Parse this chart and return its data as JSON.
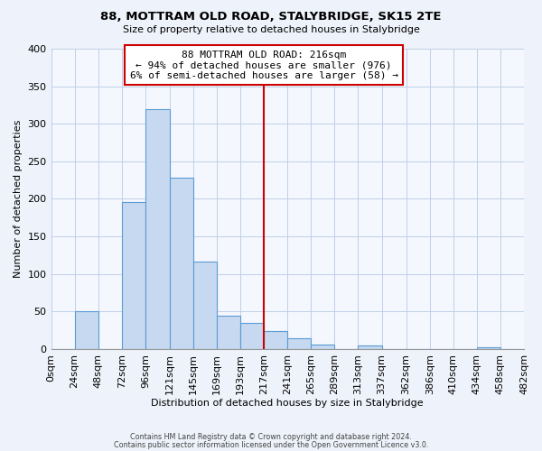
{
  "title": "88, MOTTRAM OLD ROAD, STALYBRIDGE, SK15 2TE",
  "subtitle": "Size of property relative to detached houses in Stalybridge",
  "xlabel": "Distribution of detached houses by size in Stalybridge",
  "ylabel": "Number of detached properties",
  "bar_lefts": [
    0,
    24,
    48,
    72,
    96,
    121,
    145,
    169,
    193,
    217,
    241,
    265,
    289,
    313,
    337,
    362,
    386,
    410,
    434,
    458
  ],
  "bar_widths": [
    24,
    24,
    24,
    24,
    25,
    24,
    24,
    24,
    24,
    24,
    24,
    24,
    24,
    24,
    25,
    24,
    24,
    24,
    24,
    24
  ],
  "bar_heights": [
    0,
    51,
    0,
    196,
    319,
    228,
    116,
    45,
    35,
    24,
    14,
    6,
    0,
    5,
    0,
    0,
    0,
    0,
    2,
    0
  ],
  "bar_color": "#c6d9f0",
  "bar_edge_color": "#5b9bd5",
  "vline_x": 217,
  "vline_color": "#cc0000",
  "annotation_text": "88 MOTTRAM OLD ROAD: 216sqm\n← 94% of detached houses are smaller (976)\n6% of semi-detached houses are larger (58) →",
  "annotation_box_color": "#ffffff",
  "annotation_box_edge": "#cc0000",
  "ylim": [
    0,
    400
  ],
  "xlim": [
    0,
    482
  ],
  "tick_positions": [
    0,
    24,
    48,
    72,
    96,
    121,
    145,
    169,
    193,
    217,
    241,
    265,
    289,
    313,
    337,
    362,
    386,
    410,
    434,
    458,
    482
  ],
  "tick_labels": [
    "0sqm",
    "24sqm",
    "48sqm",
    "72sqm",
    "96sqm",
    "121sqm",
    "145sqm",
    "169sqm",
    "193sqm",
    "217sqm",
    "241sqm",
    "265sqm",
    "289sqm",
    "313sqm",
    "337sqm",
    "362sqm",
    "386sqm",
    "410sqm",
    "434sqm",
    "458sqm",
    "482sqm"
  ],
  "yticks": [
    0,
    50,
    100,
    150,
    200,
    250,
    300,
    350,
    400
  ],
  "footnote1": "Contains HM Land Registry data © Crown copyright and database right 2024.",
  "footnote2": "Contains public sector information licensed under the Open Government Licence v3.0.",
  "background_color": "#eef2fa",
  "plot_background_color": "#f4f7fd"
}
